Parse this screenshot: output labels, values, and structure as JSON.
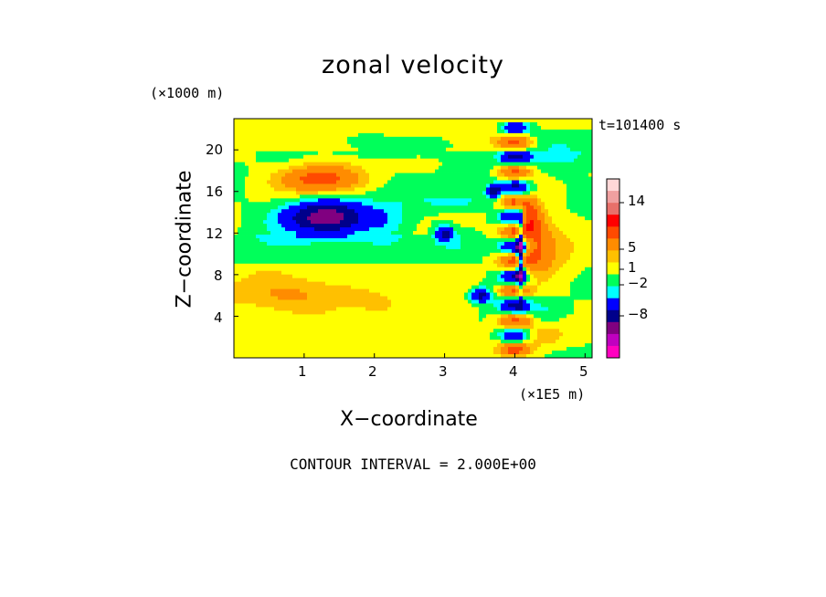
{
  "chart_data": {
    "type": "heatmap",
    "title": "zonal velocity",
    "xlabel": "X−coordinate",
    "ylabel": "Z−coordinate",
    "x_unit": "(×1E5 m)",
    "y_unit": "(×1000 m)",
    "time_label": "t=101400 s",
    "contour_interval": "CONTOUR INTERVAL = 2.000E+00",
    "xlim": [
      0,
      5.1
    ],
    "ylim": [
      0,
      23
    ],
    "x_ticks": [
      "1",
      "2",
      "3",
      "4",
      "5"
    ],
    "y_ticks": [
      "4",
      "8",
      "12",
      "16",
      "20"
    ],
    "colorbar": {
      "labels": [
        "14",
        "5",
        "1",
        "−2",
        "−8"
      ],
      "levels": [
        {
          "min": 13,
          "color": "#ffd7d7"
        },
        {
          "min": 11,
          "color": "#f0a0a0"
        },
        {
          "min": 9,
          "color": "#e8706a"
        },
        {
          "min": 6,
          "color": "#ff0000"
        },
        {
          "min": 4,
          "color": "#ff4a00"
        },
        {
          "min": 2,
          "color": "#ff8c00"
        },
        {
          "min": 1,
          "color": "#ffc000"
        },
        {
          "min": 0,
          "color": "#ffff00"
        },
        {
          "min": -1,
          "color": "#00ff5a"
        },
        {
          "min": -2,
          "color": "#00ffff"
        },
        {
          "min": -4,
          "color": "#0000ff"
        },
        {
          "min": -6,
          "color": "#00008b"
        },
        {
          "min": -8,
          "color": "#800080"
        },
        {
          "min": -12,
          "color": "#c000c0"
        },
        {
          "min": -99,
          "color": "#ff00c0"
        }
      ]
    },
    "features": [
      {
        "x": 1.2,
        "z": 17.2,
        "sx": 0.55,
        "sz": 1.3,
        "amp": 5
      },
      {
        "x": 1.3,
        "z": 13.5,
        "sx": 0.6,
        "sz": 1.6,
        "amp": -7
      },
      {
        "x": 2.2,
        "z": 13,
        "sx": 0.3,
        "sz": 2,
        "amp": -1.5
      },
      {
        "x": 0.9,
        "z": 6,
        "sx": 0.9,
        "sz": 1.5,
        "amp": 1.8
      },
      {
        "x": 3,
        "z": 12,
        "sx": 0.12,
        "sz": 0.7,
        "amp": -5
      },
      {
        "x": 3.2,
        "z": 15,
        "sx": 0.6,
        "sz": 0.8,
        "amp": -1.5
      },
      {
        "x": 3.5,
        "z": 6,
        "sx": 0.15,
        "sz": 0.7,
        "amp": -5
      },
      {
        "x": 3.7,
        "z": 16,
        "sx": 0.1,
        "sz": 0.6,
        "amp": -5
      },
      {
        "x": 4.08,
        "z": 10,
        "sx": 0.05,
        "sz": 4,
        "amp": -7
      },
      {
        "x": 4.3,
        "z": 11,
        "sx": 0.22,
        "sz": 3,
        "amp": 4
      },
      {
        "x": 4.2,
        "z": 13.5,
        "sx": 0.15,
        "sz": 1.2,
        "amp": 6
      },
      {
        "x": 4.6,
        "z": 10,
        "sx": 0.35,
        "sz": 3,
        "amp": 1.2
      },
      {
        "x": 4.4,
        "z": 2,
        "sx": 0.4,
        "sz": 1.2,
        "amp": 1.5
      },
      {
        "x": 4.5,
        "z": 4.5,
        "sx": 0.3,
        "sz": 1,
        "amp": -1.2
      },
      {
        "x": 2.5,
        "z": 20.5,
        "sx": 0.7,
        "sz": 1,
        "amp": -1.5
      },
      {
        "x": 4.7,
        "z": 20,
        "sx": 0.5,
        "sz": 2,
        "amp": -1.5
      }
    ]
  }
}
